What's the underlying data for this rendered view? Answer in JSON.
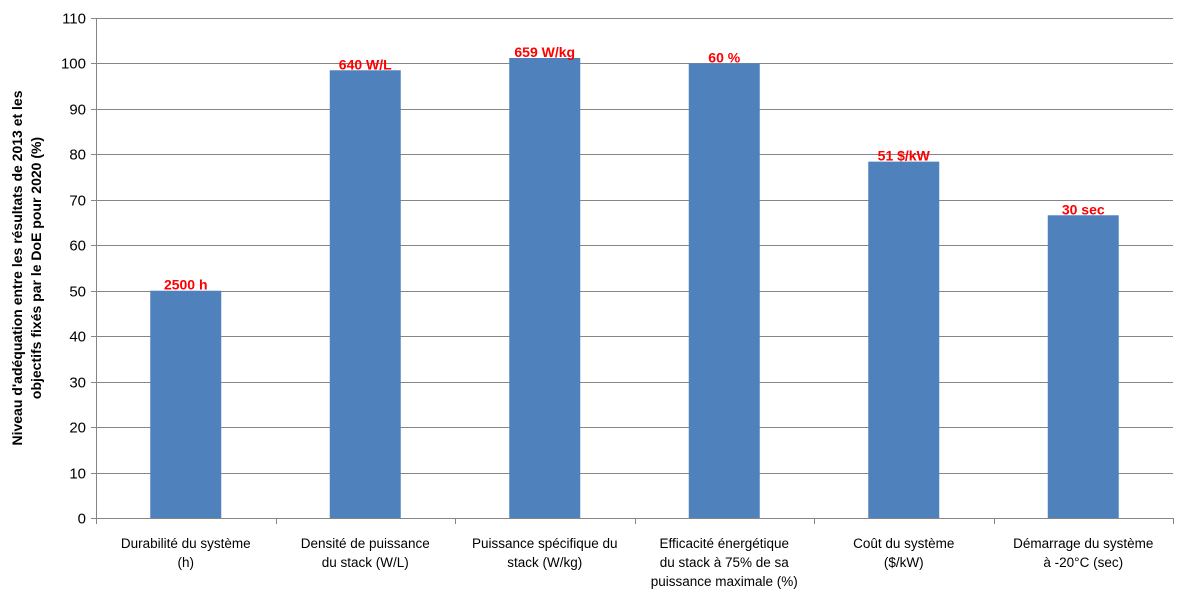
{
  "chart_data": {
    "type": "bar",
    "title": "",
    "xlabel": "",
    "ylabel_lines": [
      "Niveau d'adéquation entre les résultats de 2013 et les",
      "objectifs fixés par le DoE pour 2020 (%)"
    ],
    "ylim": [
      0,
      110
    ],
    "yticks": [
      0,
      10,
      20,
      30,
      40,
      50,
      60,
      70,
      80,
      90,
      100,
      110
    ],
    "grid": true,
    "legend": "none",
    "colors": {
      "bar": "#4f81bd",
      "data_label": "#ff0000",
      "grid": "#868686"
    },
    "categories": [
      [
        "Durabilité du système",
        "(h)"
      ],
      [
        "Densité de puissance",
        "du stack (W/L)"
      ],
      [
        "Puissance spécifique du",
        "stack (W/kg)"
      ],
      [
        "Efficacité énergétique",
        "du stack à 75% de sa",
        "puissance maximale (%)"
      ],
      [
        "Coût du système",
        "($/kW)"
      ],
      [
        "Démarrage du système",
        "à -20°C (sec)"
      ]
    ],
    "values": [
      50,
      98.5,
      101.2,
      100,
      78.4,
      66.6
    ],
    "data_labels": [
      "2500 h",
      "640 W/L",
      "659 W/kg",
      "60 %",
      "51 $/kW",
      "30 sec"
    ]
  }
}
